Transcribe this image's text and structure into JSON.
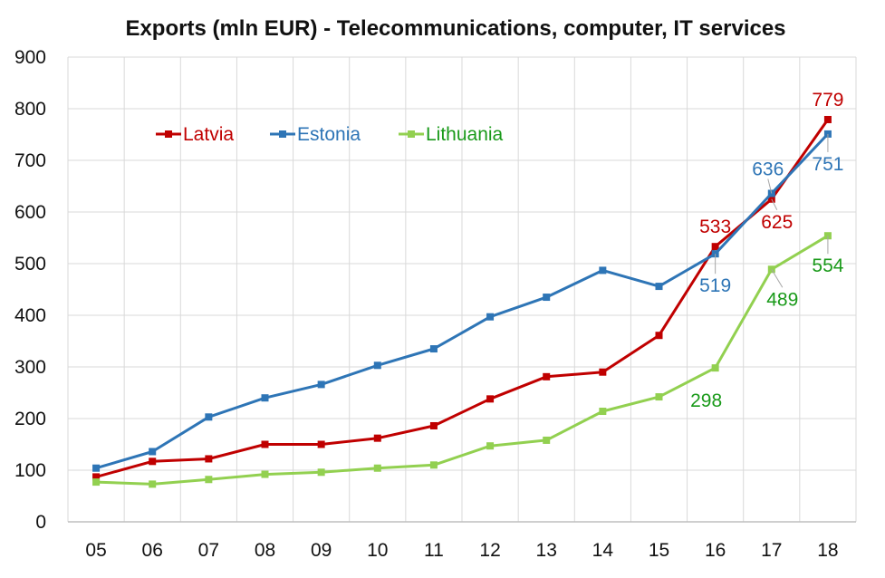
{
  "chart_data": {
    "type": "line",
    "title": "Exports (mln EUR) - Telecommunications, computer, IT services",
    "xlabel": "",
    "ylabel": "",
    "categories": [
      "05",
      "06",
      "07",
      "08",
      "09",
      "10",
      "11",
      "12",
      "13",
      "14",
      "15",
      "16",
      "17",
      "18"
    ],
    "ylim": [
      0,
      900
    ],
    "yticks": [
      0,
      100,
      200,
      300,
      400,
      500,
      600,
      700,
      800,
      900
    ],
    "grid": true,
    "legend_position": "top-left",
    "series": [
      {
        "name": "Latvia",
        "color": "#C00000",
        "values": [
          87,
          117,
          122,
          150,
          150,
          162,
          186,
          238,
          281,
          290,
          361,
          533,
          625,
          779
        ],
        "labels": {
          "11": "533",
          "12": "625",
          "13": "779"
        }
      },
      {
        "name": "Estonia",
        "color": "#2E75B6",
        "values": [
          104,
          136,
          203,
          240,
          266,
          303,
          335,
          397,
          435,
          487,
          456,
          519,
          636,
          751
        ],
        "labels": {
          "11": "519",
          "12": "636",
          "13": "751"
        }
      },
      {
        "name": "Lithuania",
        "color": "#92D050",
        "label_color": "#1A9A1A",
        "values": [
          77,
          73,
          82,
          92,
          96,
          104,
          110,
          147,
          158,
          214,
          242,
          298,
          489,
          554
        ],
        "labels": {
          "11": "298",
          "12": "489",
          "13": "554"
        }
      }
    ]
  }
}
